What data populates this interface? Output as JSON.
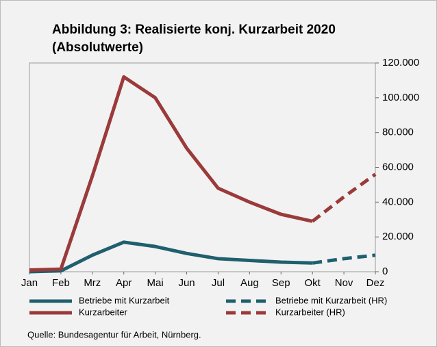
{
  "chart_data": {
    "type": "line",
    "title": [
      "Abbildung 3: Realisierte konj. Kurzarbeit 2020",
      "(Absolutwerte)"
    ],
    "categories": [
      "Jan",
      "Feb",
      "Mrz",
      "Apr",
      "Mai",
      "Jun",
      "Jul",
      "Aug",
      "Sep",
      "Okt",
      "Nov",
      "Dez"
    ],
    "series": [
      {
        "name": "Betriebe mit Kurzarbeit",
        "color": "#1f5f6e",
        "dashed": false,
        "values": [
          0,
          500,
          9500,
          17000,
          14500,
          10500,
          7500,
          6500,
          5500,
          5000,
          null,
          null
        ]
      },
      {
        "name": "Betriebe mit Kurzarbeit (HR)",
        "color": "#1f5f6e",
        "dashed": true,
        "values": [
          null,
          null,
          null,
          null,
          null,
          null,
          null,
          null,
          null,
          5000,
          7500,
          9500
        ]
      },
      {
        "name": "Kurzarbeiter",
        "color": "#9b3a3a",
        "dashed": false,
        "values": [
          1000,
          1500,
          55000,
          112000,
          100000,
          71000,
          48000,
          40000,
          33000,
          29000,
          null,
          null
        ]
      },
      {
        "name": "Kurzarbeiter (HR)",
        "color": "#9b3a3a",
        "dashed": true,
        "values": [
          null,
          null,
          null,
          null,
          null,
          null,
          null,
          null,
          null,
          29000,
          43000,
          56000
        ]
      }
    ],
    "ylim": [
      0,
      120000
    ],
    "yticks": [
      {
        "value": 0,
        "label": "0"
      },
      {
        "value": 20000,
        "label": "20.000"
      },
      {
        "value": 40000,
        "label": "40.000"
      },
      {
        "value": 60000,
        "label": "60.000"
      },
      {
        "value": 80000,
        "label": "80.000"
      },
      {
        "value": 100000,
        "label": "100.000"
      },
      {
        "value": 120000,
        "label": "120.000"
      }
    ],
    "grid": false,
    "source": "Quelle: Bundesagentur für Arbeit, Nürnberg."
  }
}
